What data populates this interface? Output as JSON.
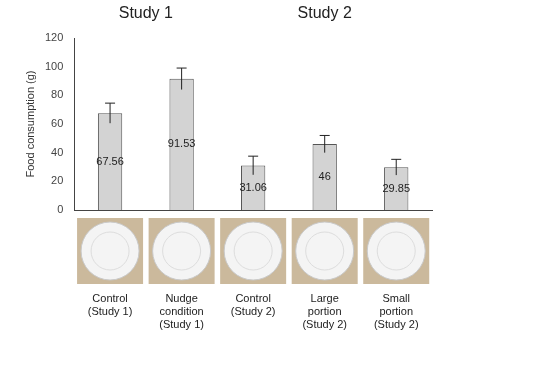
{
  "chart_data": {
    "type": "bar",
    "y_label": "Food consumption (g)",
    "categories": [
      "Control\n(Study 1)",
      "Nudge\ncondition\n(Study 1)",
      "Control\n(Study 2)",
      "Large\nportion\n(Study 2)",
      "Small\nportion\n(Study 2)"
    ],
    "values": [
      67.56,
      91.53,
      31.06,
      46,
      29.85
    ],
    "errors": [
      7,
      7.5,
      6.5,
      6,
      5.5
    ],
    "color": "#d3d3d3",
    "ylim": [
      0,
      120
    ],
    "yticks": [
      0,
      20,
      40,
      60,
      80,
      100,
      120
    ],
    "grid": false,
    "data_labels": true,
    "annotations": [
      {
        "text": "Study 1",
        "categories": [
          0,
          1
        ]
      },
      {
        "text": "Study 2",
        "categories": [
          2,
          4
        ]
      }
    ]
  }
}
